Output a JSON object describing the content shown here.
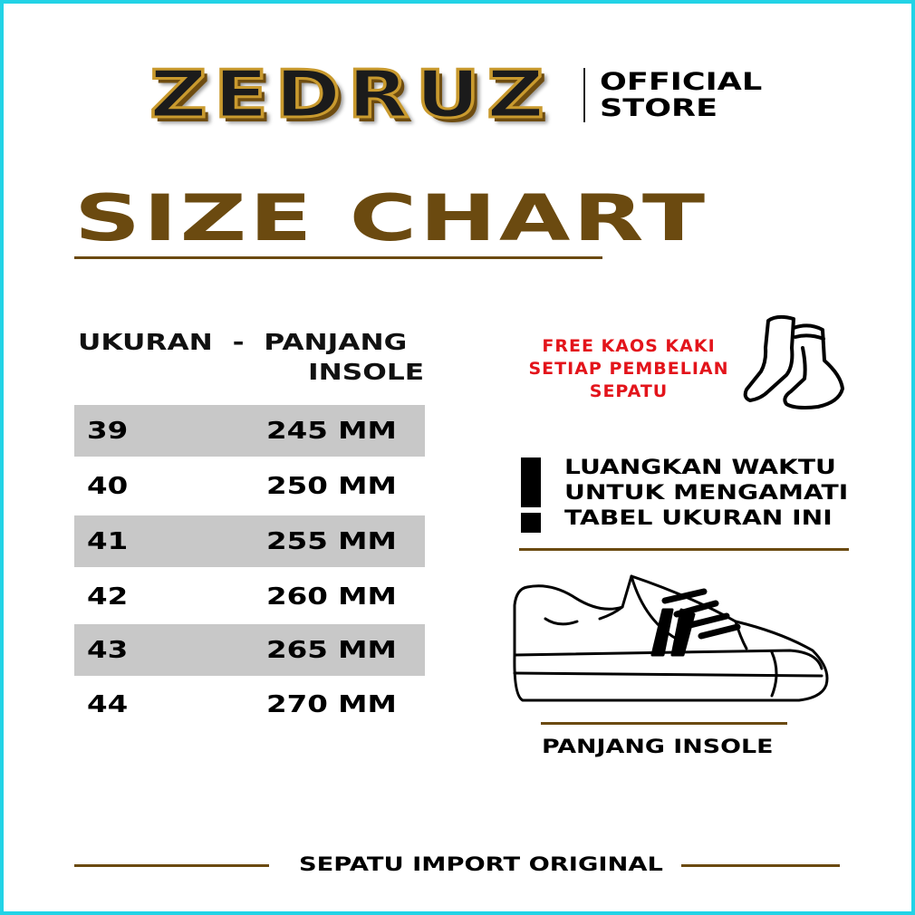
{
  "brand": {
    "logo_text": "ZEDRUZ",
    "store_label_line1": "OFFICIAL",
    "store_label_line2": "STORE"
  },
  "title": "SIZE CHART",
  "table": {
    "header_line1": "UKURAN  -  PANJANG",
    "header_line2": "INSOLE",
    "rows": [
      {
        "size": "39",
        "length": "245 MM"
      },
      {
        "size": "40",
        "length": "250 MM"
      },
      {
        "size": "41",
        "length": "255 MM"
      },
      {
        "size": "42",
        "length": "260 MM"
      },
      {
        "size": "43",
        "length": "265 MM"
      },
      {
        "size": "44",
        "length": "270 MM"
      }
    ]
  },
  "promo": {
    "line1": "FREE KAOS KAKI",
    "line2": "SETIAP PEMBELIAN",
    "line3": "SEPATU",
    "icon": "socks-icon",
    "color": "#e3141b"
  },
  "notice": {
    "line1": "LUANGKAN WAKTU",
    "line2": "UNTUK MENGAMATI",
    "line3": "TABEL UKURAN INI",
    "icon": "exclamation-icon"
  },
  "shoe": {
    "icon": "sneaker-icon",
    "caption": "PANJANG INSOLE"
  },
  "footer": "SEPATU IMPORT ORIGINAL",
  "colors": {
    "accent": "#6b4a10",
    "border": "#22d3e6",
    "row_shade": "#c8c8c8"
  }
}
